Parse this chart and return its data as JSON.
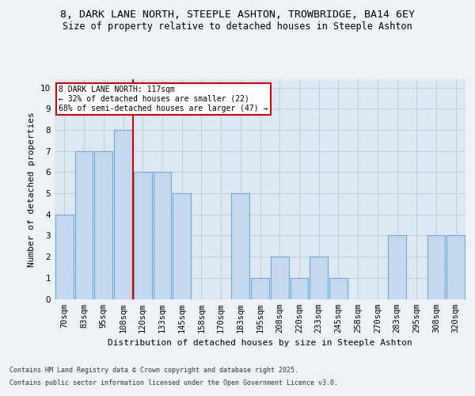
{
  "title_line1": "8, DARK LANE NORTH, STEEPLE ASHTON, TROWBRIDGE, BA14 6EY",
  "title_line2": "Size of property relative to detached houses in Steeple Ashton",
  "xlabel": "Distribution of detached houses by size in Steeple Ashton",
  "ylabel": "Number of detached properties",
  "categories": [
    "70sqm",
    "83sqm",
    "95sqm",
    "108sqm",
    "120sqm",
    "133sqm",
    "145sqm",
    "158sqm",
    "170sqm",
    "183sqm",
    "195sqm",
    "208sqm",
    "220sqm",
    "233sqm",
    "245sqm",
    "258sqm",
    "270sqm",
    "283sqm",
    "295sqm",
    "308sqm",
    "320sqm"
  ],
  "values": [
    4,
    7,
    7,
    8,
    6,
    6,
    5,
    0,
    0,
    5,
    1,
    2,
    1,
    2,
    1,
    0,
    0,
    3,
    0,
    3,
    3
  ],
  "bar_color": "#c5d8ed",
  "bar_edge_color": "#6aaad4",
  "grid_color": "#c8cdd2",
  "vline_x_index": 3.5,
  "vline_color": "#cc0000",
  "annotation_text": "8 DARK LANE NORTH: 117sqm\n← 32% of detached houses are smaller (22)\n68% of semi-detached houses are larger (47) →",
  "annotation_box_color": "white",
  "annotation_box_edge": "#cc0000",
  "ylim": [
    0,
    10.4
  ],
  "yticks": [
    0,
    1,
    2,
    3,
    4,
    5,
    6,
    7,
    8,
    9,
    10
  ],
  "footer_line1": "Contains HM Land Registry data © Crown copyright and database right 2025.",
  "footer_line2": "Contains public sector information licensed under the Open Government Licence v3.0.",
  "bg_color": "#eef2f7",
  "plot_bg_color": "#dce8f4",
  "title1_fontsize": 9.5,
  "title2_fontsize": 8.5,
  "axis_label_fontsize": 8,
  "tick_fontsize": 7.5,
  "footer_fontsize": 6,
  "annot_fontsize": 7
}
